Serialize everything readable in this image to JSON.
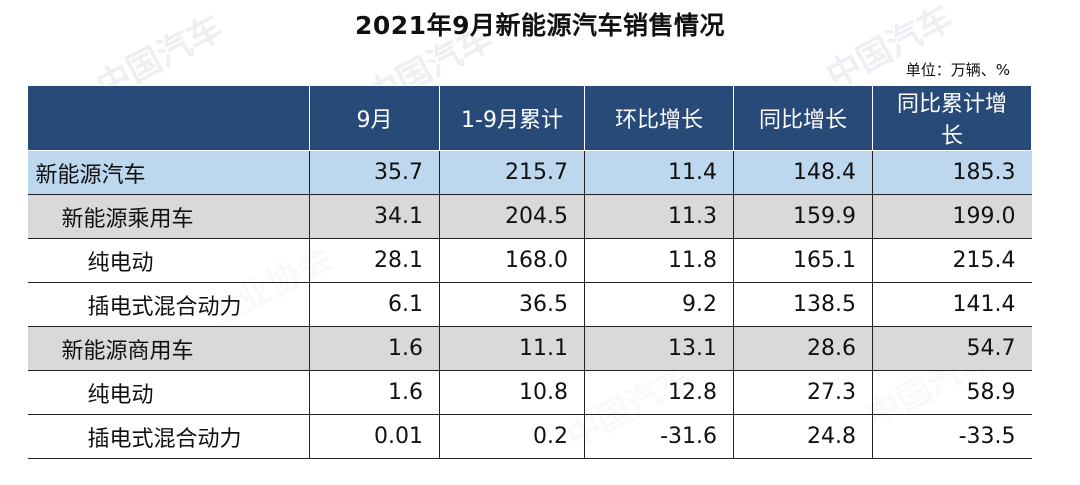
{
  "title": "2021年9月新能源汽车销售情况",
  "unit": "单位：万辆、%",
  "columns": [
    "",
    "9月",
    "1-9月累计",
    "环比增长",
    "同比增长",
    "同比累计增长"
  ],
  "rows": [
    {
      "level": 0,
      "label": "新能源汽车",
      "values": [
        "35.7",
        "215.7",
        "11.4",
        "148.4",
        "185.3"
      ]
    },
    {
      "level": 1,
      "label": "新能源乘用车",
      "values": [
        "34.1",
        "204.5",
        "11.3",
        "159.9",
        "199.0"
      ]
    },
    {
      "level": 2,
      "label": "纯电动",
      "values": [
        "28.1",
        "168.0",
        "11.8",
        "165.1",
        "215.4"
      ]
    },
    {
      "level": 2,
      "label": "插电式混合动力",
      "values": [
        "6.1",
        "36.5",
        "9.2",
        "138.5",
        "141.4"
      ]
    },
    {
      "level": 1,
      "label": "新能源商用车",
      "values": [
        "1.6",
        "11.1",
        "13.1",
        "28.6",
        "54.7"
      ]
    },
    {
      "level": 2,
      "label": "纯电动",
      "values": [
        "1.6",
        "10.8",
        "12.8",
        "27.3",
        "58.9"
      ]
    },
    {
      "level": 2,
      "label": "插电式混合动力",
      "values": [
        "0.01",
        "0.2",
        "-31.6",
        "24.8",
        "-33.5"
      ]
    }
  ],
  "colors": {
    "header_bg": "#274a78",
    "total_row": "#bdd7ee",
    "sub_row": "#d9d9d9"
  }
}
